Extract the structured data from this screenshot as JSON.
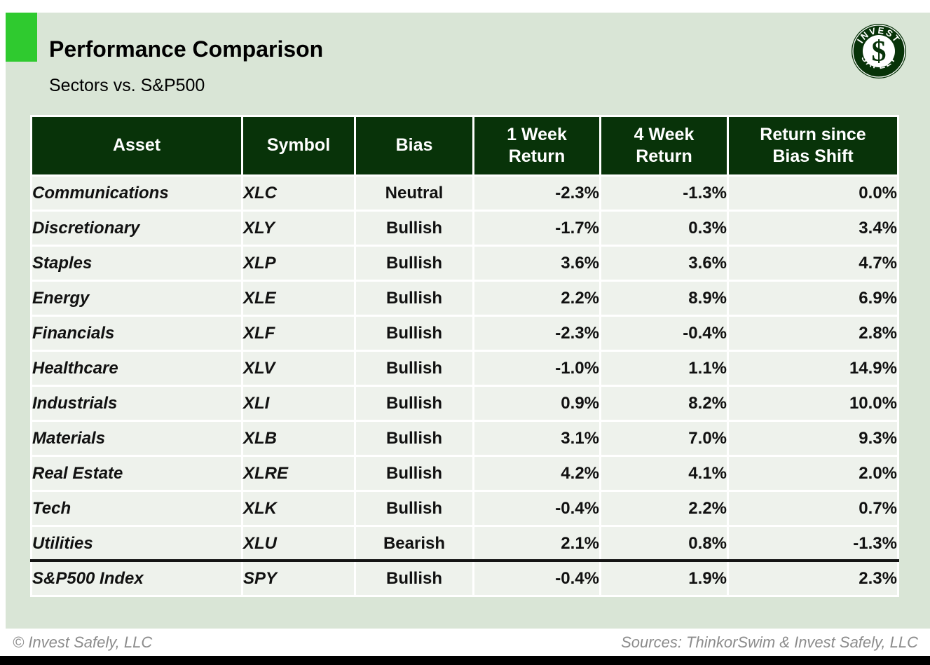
{
  "slide": {
    "title": "Performance Comparison",
    "subtitle": "Sectors vs. S&P500",
    "footer_left": "© Invest Safely, LLC",
    "footer_right": "Sources: ThinkorSwim & Invest Safely, LLC"
  },
  "logo": {
    "arc_top": "INVEST",
    "arc_bottom": "SAFELY",
    "monogram": "$"
  },
  "colors": {
    "accent_square": "#2fca2f",
    "slide_bg": "#d9e5d6",
    "header_bg": "#083309",
    "row_bg": "#eef2ec",
    "positive": "#168916",
    "negative": "#fa0606",
    "neutral": "#8e8e8e"
  },
  "table": {
    "columns": [
      {
        "l1": "Asset",
        "l2": ""
      },
      {
        "l1": "Symbol",
        "l2": ""
      },
      {
        "l1": "Bias",
        "l2": ""
      },
      {
        "l1": "1 Week",
        "l2": "Return"
      },
      {
        "l1": "4 Week",
        "l2": "Return"
      },
      {
        "l1": "Return since",
        "l2": "Bias Shift"
      }
    ],
    "rows": [
      {
        "asset": "Communications",
        "symbol": "XLC",
        "bias": "Neutral",
        "bias_tone": "neutral",
        "returns": [
          {
            "v": "-2.3%",
            "tone": "neg"
          },
          {
            "v": "-1.3%",
            "tone": "neg"
          },
          {
            "v": "0.0%",
            "tone": "neg"
          }
        ]
      },
      {
        "asset": "Discretionary",
        "symbol": "XLY",
        "bias": "Bullish",
        "bias_tone": "pos",
        "returns": [
          {
            "v": "-1.7%",
            "tone": "neg"
          },
          {
            "v": "0.3%",
            "tone": "pos"
          },
          {
            "v": "3.4%",
            "tone": "pos"
          }
        ]
      },
      {
        "asset": "Staples",
        "symbol": "XLP",
        "bias": "Bullish",
        "bias_tone": "pos",
        "returns": [
          {
            "v": "3.6%",
            "tone": "pos"
          },
          {
            "v": "3.6%",
            "tone": "pos"
          },
          {
            "v": "4.7%",
            "tone": "pos"
          }
        ]
      },
      {
        "asset": "Energy",
        "symbol": "XLE",
        "bias": "Bullish",
        "bias_tone": "pos",
        "returns": [
          {
            "v": "2.2%",
            "tone": "pos"
          },
          {
            "v": "8.9%",
            "tone": "pos"
          },
          {
            "v": "6.9%",
            "tone": "pos"
          }
        ]
      },
      {
        "asset": "Financials",
        "symbol": "XLF",
        "bias": "Bullish",
        "bias_tone": "pos",
        "returns": [
          {
            "v": "-2.3%",
            "tone": "neg"
          },
          {
            "v": "-0.4%",
            "tone": "neg"
          },
          {
            "v": "2.8%",
            "tone": "pos"
          }
        ]
      },
      {
        "asset": "Healthcare",
        "symbol": "XLV",
        "bias": "Bullish",
        "bias_tone": "pos",
        "returns": [
          {
            "v": "-1.0%",
            "tone": "neg"
          },
          {
            "v": "1.1%",
            "tone": "pos"
          },
          {
            "v": "14.9%",
            "tone": "pos"
          }
        ]
      },
      {
        "asset": "Industrials",
        "symbol": "XLI",
        "bias": "Bullish",
        "bias_tone": "pos",
        "returns": [
          {
            "v": "0.9%",
            "tone": "pos"
          },
          {
            "v": "8.2%",
            "tone": "pos"
          },
          {
            "v": "10.0%",
            "tone": "pos"
          }
        ]
      },
      {
        "asset": "Materials",
        "symbol": "XLB",
        "bias": "Bullish",
        "bias_tone": "pos",
        "returns": [
          {
            "v": "3.1%",
            "tone": "pos"
          },
          {
            "v": "7.0%",
            "tone": "pos"
          },
          {
            "v": "9.3%",
            "tone": "pos"
          }
        ]
      },
      {
        "asset": "Real Estate",
        "symbol": "XLRE",
        "bias": "Bullish",
        "bias_tone": "pos",
        "returns": [
          {
            "v": "4.2%",
            "tone": "pos"
          },
          {
            "v": "4.1%",
            "tone": "pos"
          },
          {
            "v": "2.0%",
            "tone": "pos"
          }
        ]
      },
      {
        "asset": "Tech",
        "symbol": "XLK",
        "bias": "Bullish",
        "bias_tone": "pos",
        "returns": [
          {
            "v": "-0.4%",
            "tone": "neg"
          },
          {
            "v": "2.2%",
            "tone": "pos"
          },
          {
            "v": "0.7%",
            "tone": "pos"
          }
        ]
      },
      {
        "asset": "Utilities",
        "symbol": "XLU",
        "bias": "Bearish",
        "bias_tone": "neg",
        "returns": [
          {
            "v": "2.1%",
            "tone": "pos"
          },
          {
            "v": "0.8%",
            "tone": "pos"
          },
          {
            "v": "-1.3%",
            "tone": "neg"
          }
        ]
      },
      {
        "asset": "S&P500 Index",
        "symbol": "SPY",
        "bias": "Bullish",
        "bias_tone": "pos",
        "index_row": true,
        "returns": [
          {
            "v": "-0.4%",
            "tone": "neg"
          },
          {
            "v": "1.9%",
            "tone": "pos"
          },
          {
            "v": "2.3%",
            "tone": "pos"
          }
        ]
      }
    ]
  }
}
